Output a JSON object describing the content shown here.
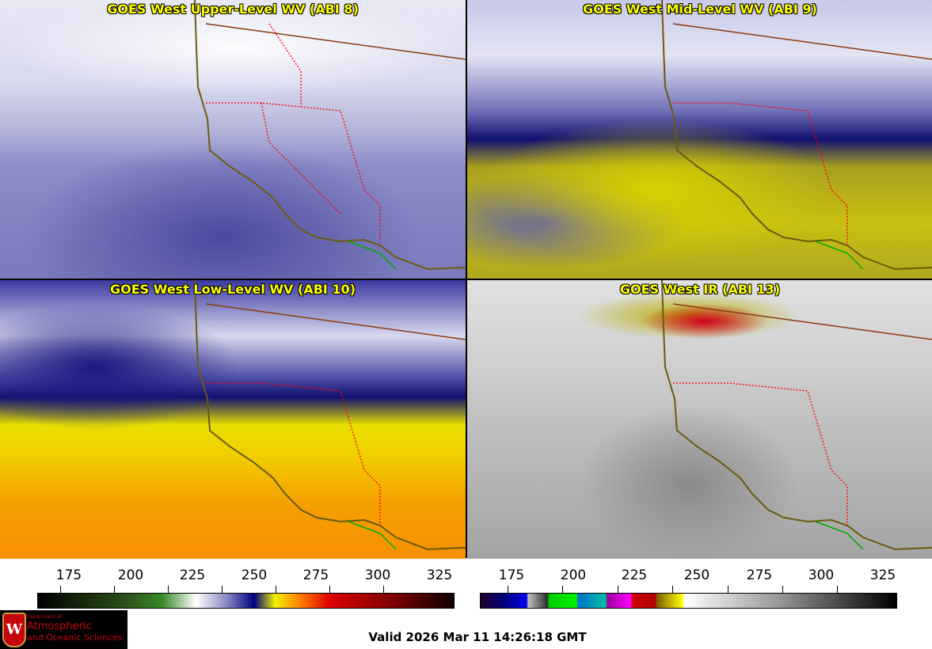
{
  "panels": [
    {
      "title": "GOES West Upper-Level WV (ABI 8)"
    },
    {
      "title": "GOES West Mid-Level WV (ABI 9)"
    },
    {
      "title": "GOES West Low-Level WV (ABI 10)"
    },
    {
      "title": "GOES West IR (ABI 13)"
    }
  ],
  "colorbars": [
    {
      "name": "wv-colorbar",
      "ticks": [
        "175",
        "200",
        "225",
        "250",
        "275",
        "300",
        "325"
      ]
    },
    {
      "name": "ir-colorbar",
      "ticks": [
        "175",
        "200",
        "225",
        "250",
        "275",
        "300",
        "325"
      ]
    }
  ],
  "logo": {
    "line1": "Department of",
    "line2": "Atmospheric",
    "line3": "and Oceanic Sciences",
    "crest": "W"
  },
  "valid_time": "Valid 2026 Mar 11 14:26:18 GMT",
  "colors": {
    "title": "#ffff00",
    "state_borders": "#ff0000",
    "coast": "#6b5a10",
    "mexico": "#00a000"
  }
}
